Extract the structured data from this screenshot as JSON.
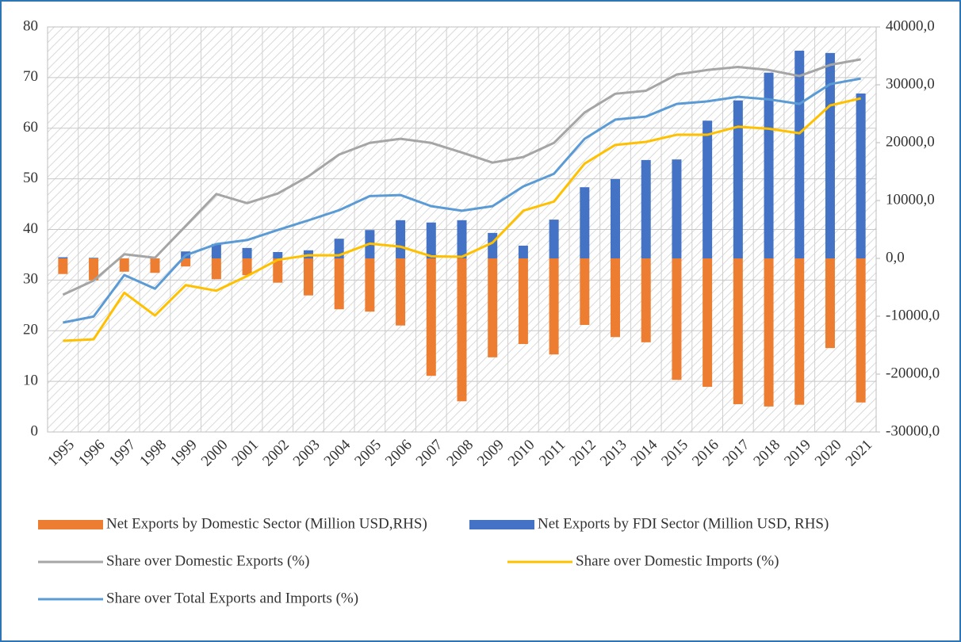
{
  "chart_data": {
    "type": "combo",
    "categories": [
      "1995",
      "1996",
      "1997",
      "1998",
      "1999",
      "2000",
      "2001",
      "2002",
      "2003",
      "2004",
      "2005",
      "2006",
      "2007",
      "2008",
      "2009",
      "2010",
      "2011",
      "2012",
      "2013",
      "2014",
      "2015",
      "2016",
      "2017",
      "2018",
      "2019",
      "2020",
      "2021"
    ],
    "ylim": [
      0,
      80
    ],
    "yticks": [
      0,
      10,
      20,
      30,
      40,
      50,
      60,
      70,
      80
    ],
    "y2lim": [
      -30000,
      40000
    ],
    "y2ticks": [
      {
        "value": -30000,
        "label": "-30000,0"
      },
      {
        "value": -20000,
        "label": "-20000,0"
      },
      {
        "value": -10000,
        "label": "-10000,0"
      },
      {
        "value": 0,
        "label": "0,0"
      },
      {
        "value": 10000,
        "label": "10000,0"
      },
      {
        "value": 20000,
        "label": "20000,0"
      },
      {
        "value": 30000,
        "label": "30000,0"
      },
      {
        "value": 40000,
        "label": "40000,0"
      }
    ],
    "grid": true,
    "legend": "bottom",
    "series": [
      {
        "name": "Net Exports by Domestic Sector (Million USD,RHS)",
        "type": "bar",
        "axis": "y2",
        "color": "#ed7d31",
        "values": [
          -2700,
          -3800,
          -2300,
          -2500,
          -1400,
          -3600,
          -2900,
          -4200,
          -6400,
          -8800,
          -9200,
          -11600,
          -20300,
          -24700,
          -17100,
          -14800,
          -16600,
          -11500,
          -13600,
          -14500,
          -21000,
          -22200,
          -25200,
          -25600,
          -25300,
          -15500,
          -24900
        ]
      },
      {
        "name": "Net Exports by FDI Sector (Million USD, RHS)",
        "type": "bar",
        "axis": "y2",
        "color": "#4472c4",
        "values": [
          200,
          100,
          0,
          0,
          1200,
          2500,
          1800,
          1100,
          1400,
          3400,
          4900,
          6600,
          6200,
          6600,
          4400,
          2200,
          6700,
          12300,
          13700,
          17000,
          17100,
          23800,
          27300,
          32100,
          35900,
          35500,
          28500
        ]
      },
      {
        "name": "Share over Domestic Exports (%)",
        "type": "line",
        "color": "#a5a5a5",
        "values": [
          27.1,
          29.9,
          35.1,
          34.4,
          40.7,
          47,
          45.2,
          47.1,
          50.5,
          54.8,
          57.1,
          57.9,
          57.1,
          55.2,
          53.2,
          54.3,
          57.1,
          63.1,
          66.8,
          67.4,
          70.6,
          71.5,
          72.1,
          71.5,
          70.3,
          72.5,
          73.6
        ]
      },
      {
        "name": "Share over Domestic Imports (%)",
        "type": "line",
        "color": "#ffc000",
        "values": [
          18,
          18.3,
          27.5,
          23,
          29,
          27.9,
          30.8,
          34,
          34.9,
          34.9,
          37.2,
          36.6,
          34.7,
          34.6,
          37.4,
          43.7,
          45.5,
          53,
          56.7,
          57.3,
          58.7,
          58.7,
          60.3,
          59.9,
          59,
          64.5,
          65.9
        ]
      },
      {
        "name": "Share over Total Exports and Imports (%)",
        "type": "line",
        "color": "#5b9bd5",
        "values": [
          21.6,
          22.8,
          31,
          28.3,
          34.9,
          37.1,
          37.9,
          39.9,
          41.8,
          43.8,
          46.6,
          46.8,
          44.6,
          43.7,
          44.6,
          48.5,
          51,
          57.9,
          61.7,
          62.3,
          64.8,
          65.3,
          66.2,
          65.7,
          64.8,
          68.7,
          69.8
        ]
      }
    ]
  }
}
